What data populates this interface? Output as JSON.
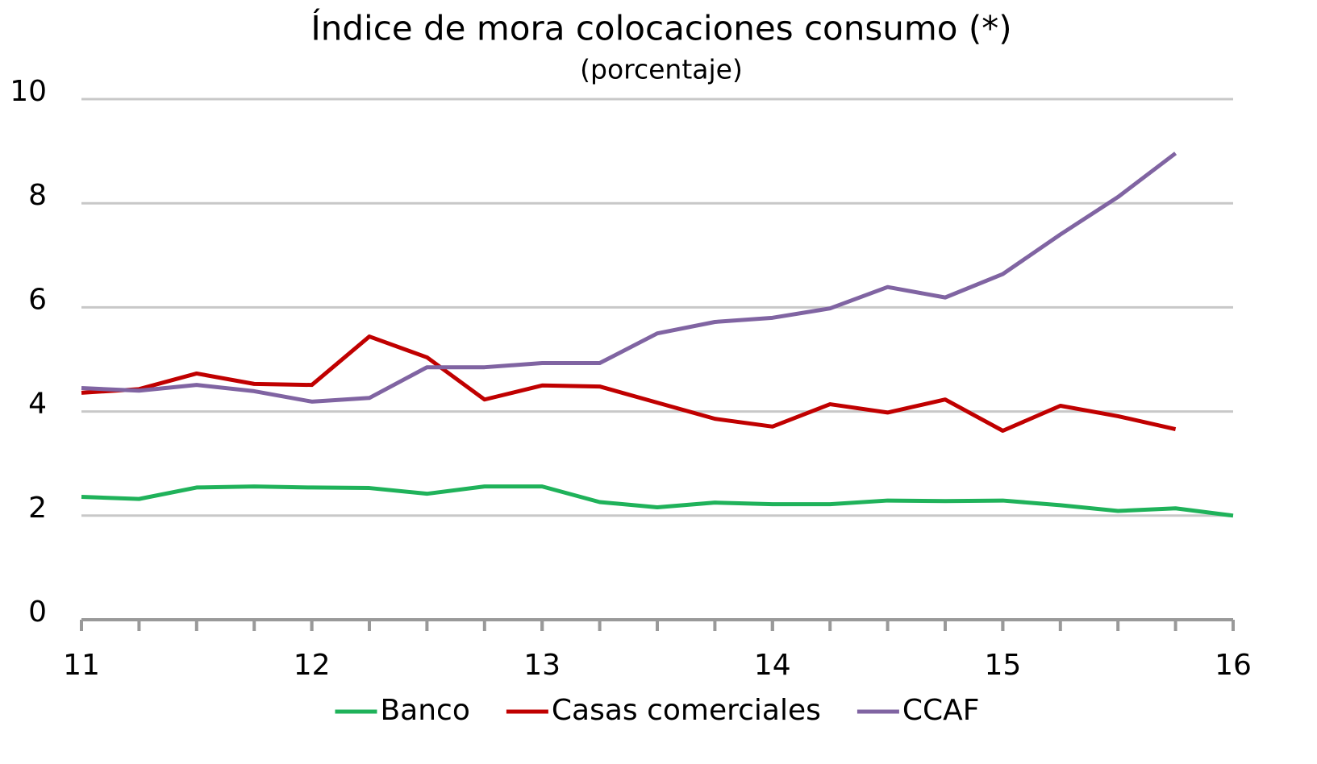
{
  "chart_data": {
    "type": "line",
    "title": "Índice de mora colocaciones consumo (*)",
    "subtitle": "(porcentaje)",
    "x": [
      11,
      11.25,
      11.5,
      11.75,
      12,
      12.25,
      12.5,
      12.75,
      13,
      13.25,
      13.5,
      13.75,
      14,
      14.25,
      14.5,
      14.75,
      15,
      15.25,
      15.5,
      15.75,
      16
    ],
    "series": [
      {
        "name": "Banco",
        "color": "#1fb25a",
        "values": [
          2.36,
          2.32,
          2.54,
          2.56,
          2.54,
          2.53,
          2.42,
          2.56,
          2.56,
          2.26,
          2.16,
          2.25,
          2.22,
          2.22,
          2.29,
          2.28,
          2.29,
          2.2,
          2.09,
          2.14,
          2.0
        ]
      },
      {
        "name": "Casas comerciales",
        "color": "#c00000",
        "values": [
          4.36,
          4.43,
          4.73,
          4.53,
          4.51,
          5.44,
          5.04,
          4.23,
          4.5,
          4.48,
          4.17,
          3.86,
          3.71,
          4.14,
          3.98,
          4.23,
          3.63,
          4.11,
          3.91,
          3.66,
          null
        ]
      },
      {
        "name": "CCAF",
        "color": "#8064a2",
        "values": [
          4.45,
          4.4,
          4.51,
          4.39,
          4.19,
          4.26,
          4.85,
          4.85,
          4.93,
          4.93,
          5.5,
          5.72,
          5.8,
          5.98,
          6.39,
          6.19,
          6.64,
          7.4,
          8.12,
          8.96,
          null
        ]
      }
    ],
    "xlim": [
      11,
      16
    ],
    "xticks": [
      11,
      12,
      13,
      14,
      15,
      16
    ],
    "ylim": [
      0,
      10
    ],
    "yticks": [
      0,
      2,
      4,
      6,
      8,
      10
    ],
    "grid": true,
    "legend": "bottom"
  }
}
